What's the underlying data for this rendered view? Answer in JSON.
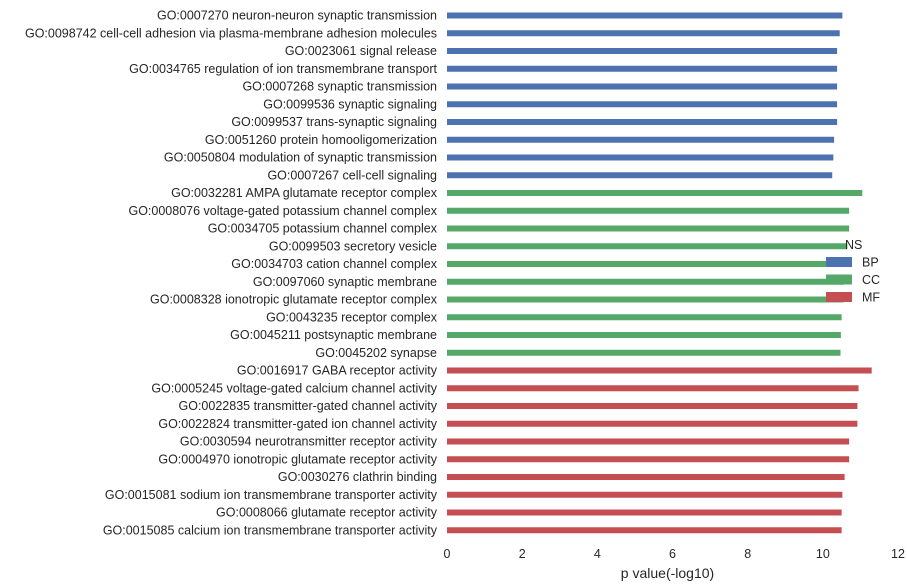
{
  "chart_data": {
    "type": "bar",
    "orientation": "horizontal",
    "xlabel": "p value(-log10)",
    "xlim": [
      0,
      12
    ],
    "xticks": [
      0,
      2,
      4,
      6,
      8,
      10,
      12
    ],
    "grid": false,
    "legend": {
      "placement": "right",
      "title": "NS",
      "entries": [
        {
          "name": "BP",
          "color": "#4c72b0"
        },
        {
          "name": "CC",
          "color": "#55a868"
        },
        {
          "name": "MF",
          "color": "#c44e52"
        }
      ]
    },
    "series": [
      {
        "name": "BP",
        "color": "#4c72b0",
        "categories": [
          "GO:0007270 neuron-neuron synaptic transmission",
          "GO:0098742 cell-cell adhesion via plasma-membrane adhesion molecules",
          "GO:0023061 signal release",
          "GO:0034765 regulation of ion transmembrane transport",
          "GO:0007268 synaptic transmission",
          "GO:0099536 synaptic signaling",
          "GO:0099537 trans-synaptic signaling",
          "GO:0051260 protein homooligomerization",
          "GO:0050804 modulation of synaptic transmission",
          "GO:0007267 cell-cell signaling"
        ],
        "values": [
          10.52,
          10.45,
          10.38,
          10.38,
          10.38,
          10.38,
          10.38,
          10.3,
          10.28,
          10.25
        ]
      },
      {
        "name": "CC",
        "color": "#55a868",
        "categories": [
          "GO:0032281 AMPA glutamate receptor complex",
          "GO:0008076 voltage-gated potassium channel complex",
          "GO:0034705 potassium channel complex",
          "GO:0099503 secretory vesicle",
          "GO:0034703 cation channel complex",
          "GO:0097060 synaptic membrane",
          "GO:0008328 ionotropic glutamate receptor complex",
          "GO:0043235 receptor complex",
          "GO:0045211 postsynaptic membrane",
          "GO:0045202 synapse"
        ],
        "values": [
          11.05,
          10.7,
          10.7,
          10.65,
          10.6,
          10.55,
          10.55,
          10.5,
          10.48,
          10.47
        ]
      },
      {
        "name": "MF",
        "color": "#c44e52",
        "categories": [
          "GO:0016917 GABA receptor activity",
          "GO:0005245 voltage-gated calcium channel activity",
          "GO:0022835 transmitter-gated channel activity",
          "GO:0022824 transmitter-gated ion channel activity",
          "GO:0030594 neurotransmitter receptor activity",
          "GO:0004970 ionotropic glutamate receptor activity",
          "GO:0030276 clathrin binding",
          "GO:0015081 sodium ion transmembrane transporter activity",
          "GO:0008066 glutamate receptor activity",
          "GO:0015085 calcium ion transmembrane transporter activity"
        ],
        "values": [
          11.3,
          10.95,
          10.92,
          10.92,
          10.7,
          10.7,
          10.58,
          10.52,
          10.5,
          10.5
        ]
      }
    ]
  }
}
